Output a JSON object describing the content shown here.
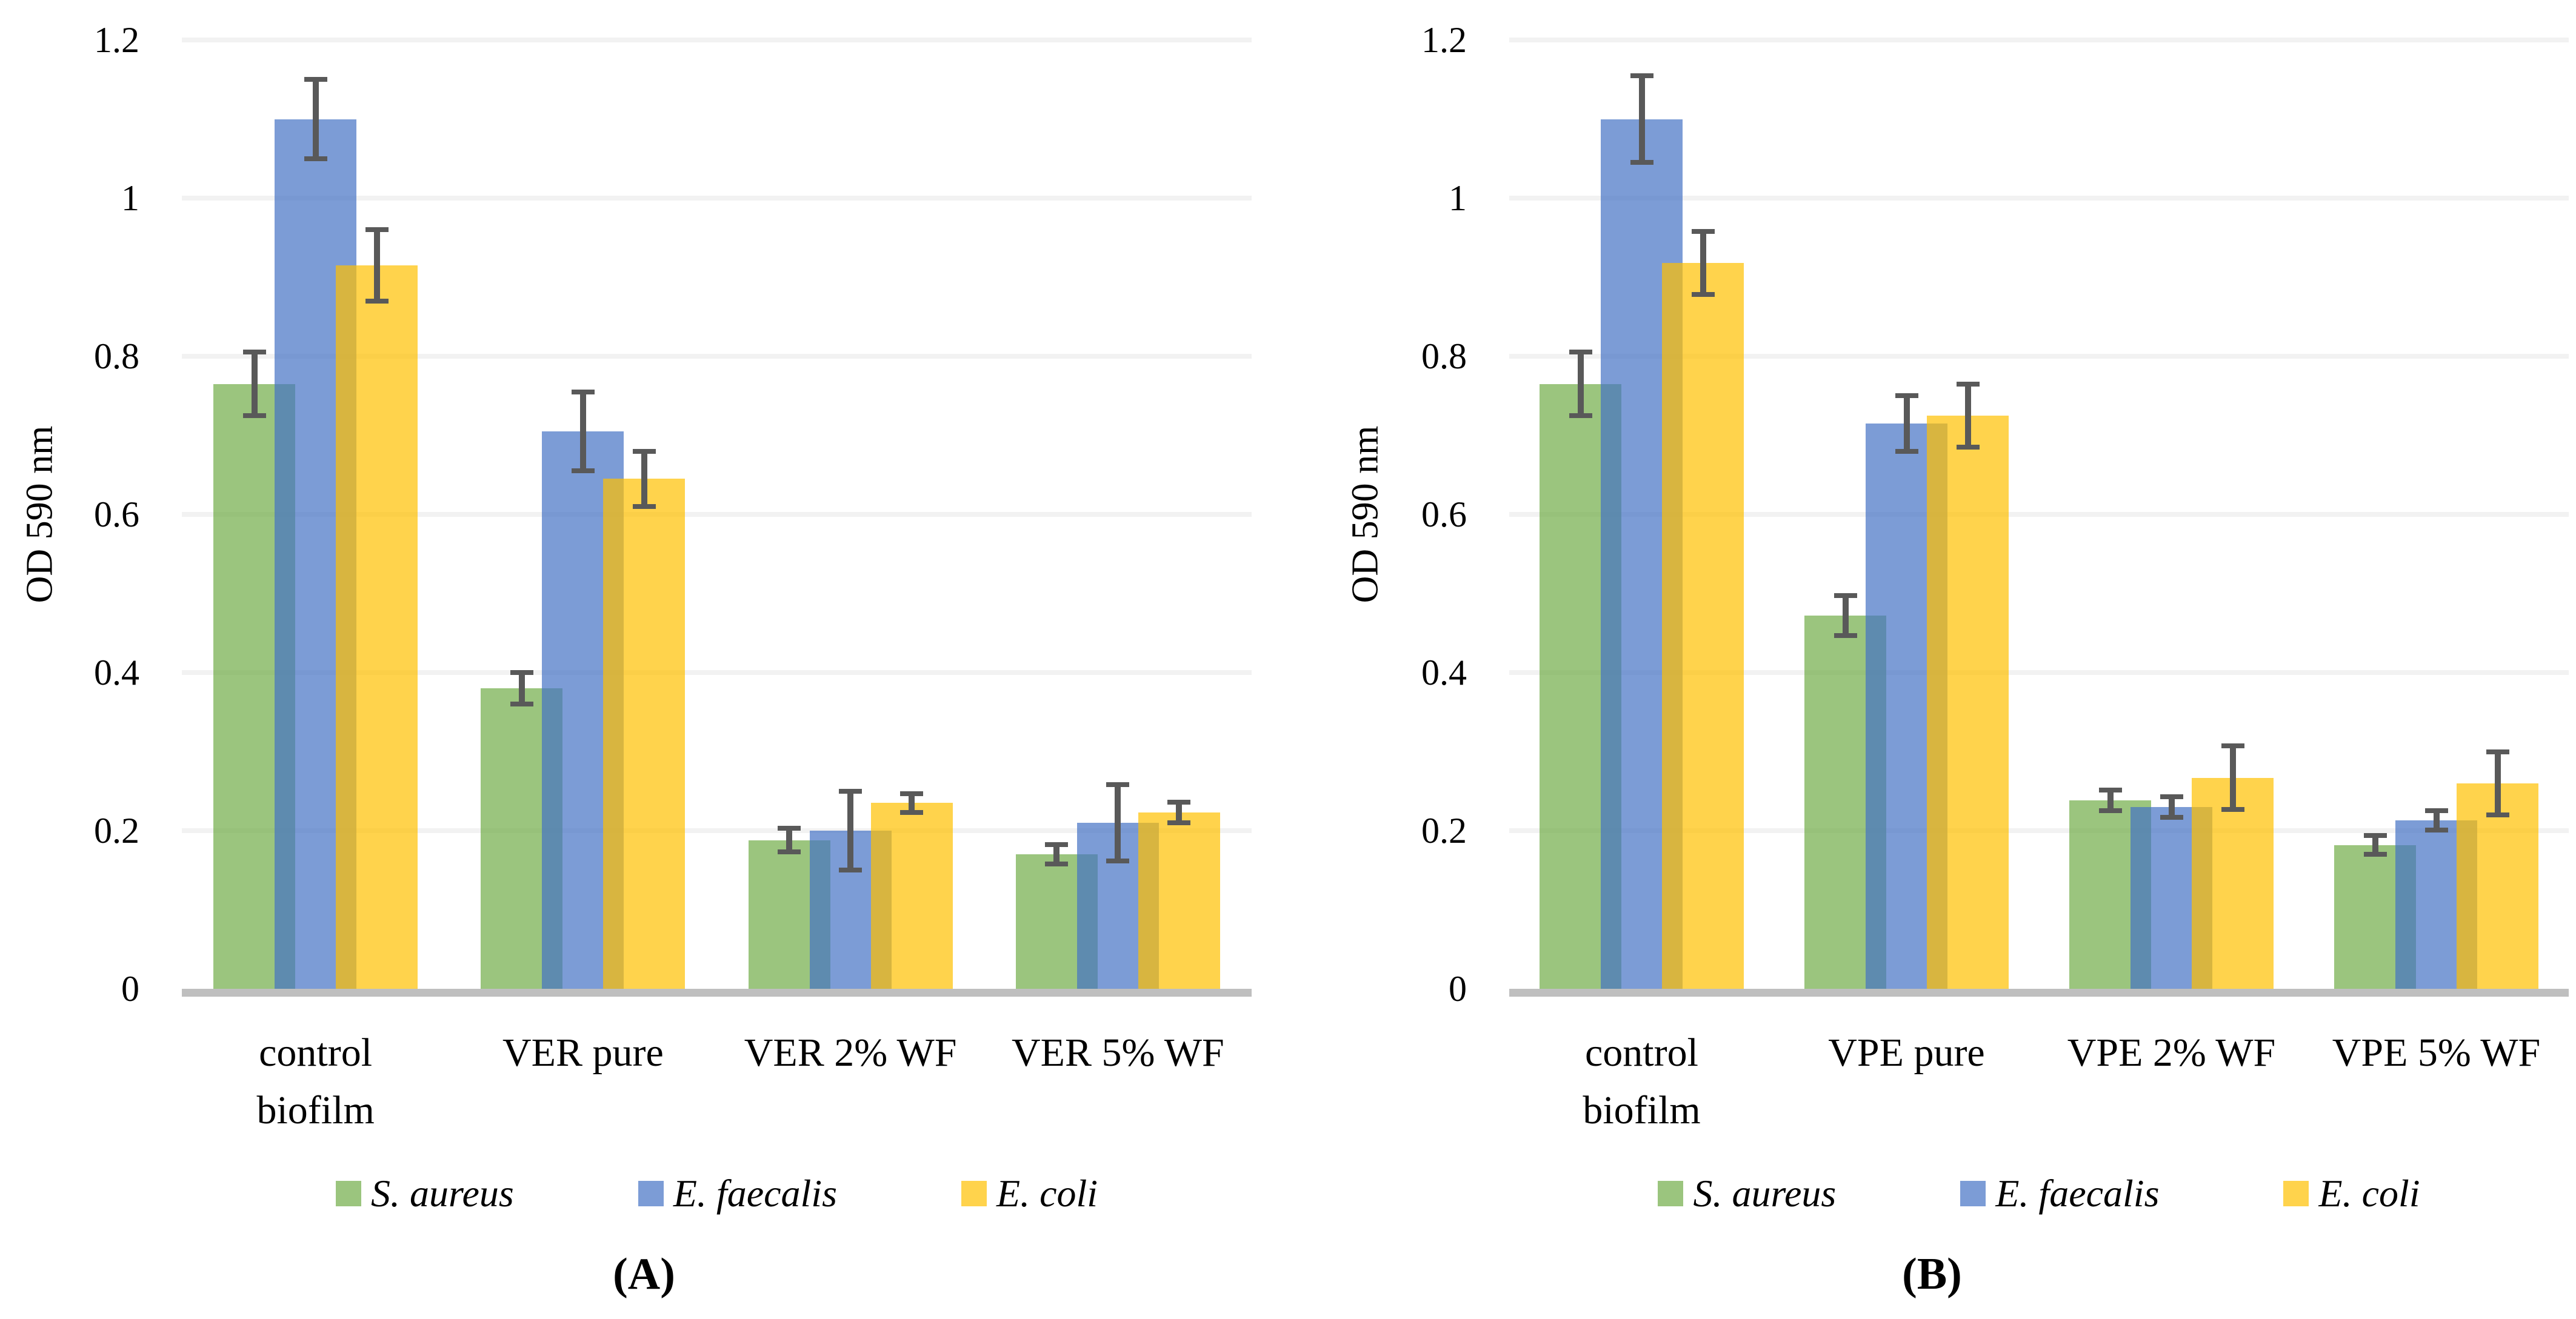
{
  "figure": {
    "background": "#FFFFFF",
    "bar_opacity": 0.7,
    "error_bar_color": "#595959",
    "baseline_color": "#BFBFBF",
    "gridline_color": "#F2F2F2",
    "legend_swatch_icon": "square-swatch"
  },
  "chart_data": [
    {
      "type": "bar",
      "panel_label": "(A)",
      "ylabel": "OD 590 nm",
      "ylim": [
        0,
        1.2
      ],
      "grid": true,
      "legend_position": "bottom",
      "ytick_labels": [
        "0",
        "0.2",
        "0.4",
        "0.6",
        "0.8",
        "1",
        "1.2"
      ],
      "ytick_values": [
        0,
        0.2,
        0.4,
        0.6,
        0.8,
        1.0,
        1.2
      ],
      "categories": [
        "control biofilm",
        "VER pure",
        "VER 2% WF",
        "VER 5% WF"
      ],
      "category_lines": [
        [
          "control",
          "biofilm"
        ],
        [
          "VER pure"
        ],
        [
          "VER 2% WF"
        ],
        [
          "VER 5% WF"
        ]
      ],
      "series": [
        {
          "name": "S. aureus",
          "color": "#70AD47",
          "values": [
            0.765,
            0.38,
            0.188,
            0.17
          ],
          "errors": [
            0.04,
            0.02,
            0.015,
            0.012
          ]
        },
        {
          "name": "E. faecalis",
          "color": "#4472C4",
          "values": [
            1.1,
            0.705,
            0.2,
            0.21
          ],
          "errors": [
            0.05,
            0.05,
            0.05,
            0.048
          ]
        },
        {
          "name": "E. coli",
          "color": "#FFC000",
          "values": [
            0.915,
            0.645,
            0.235,
            0.223
          ],
          "errors": [
            0.045,
            0.035,
            0.012,
            0.013
          ]
        }
      ]
    },
    {
      "type": "bar",
      "panel_label": "(B)",
      "ylabel": "OD 590 nm",
      "ylim": [
        0,
        1.2
      ],
      "grid": true,
      "legend_position": "bottom",
      "ytick_labels": [
        "0",
        "0.2",
        "0.4",
        "0.6",
        "0.8",
        "1",
        "1.2"
      ],
      "ytick_values": [
        0,
        0.2,
        0.4,
        0.6,
        0.8,
        1.0,
        1.2
      ],
      "categories": [
        "control biofilm",
        "VPE pure",
        "VPE 2% WF",
        "VPE 5% WF"
      ],
      "category_lines": [
        [
          "control",
          "biofilm"
        ],
        [
          "VPE pure"
        ],
        [
          "VPE 2% WF"
        ],
        [
          "VPE 5% WF"
        ]
      ],
      "series": [
        {
          "name": "S. aureus",
          "color": "#70AD47",
          "values": [
            0.765,
            0.472,
            0.238,
            0.182
          ],
          "errors": [
            0.04,
            0.025,
            0.013,
            0.012
          ]
        },
        {
          "name": "E. faecalis",
          "color": "#4472C4",
          "values": [
            1.1,
            0.715,
            0.23,
            0.213
          ],
          "errors": [
            0.055,
            0.035,
            0.013,
            0.012
          ]
        },
        {
          "name": "E. coli",
          "color": "#FFC000",
          "values": [
            0.918,
            0.725,
            0.267,
            0.26
          ],
          "errors": [
            0.04,
            0.04,
            0.04,
            0.04
          ]
        }
      ]
    }
  ]
}
